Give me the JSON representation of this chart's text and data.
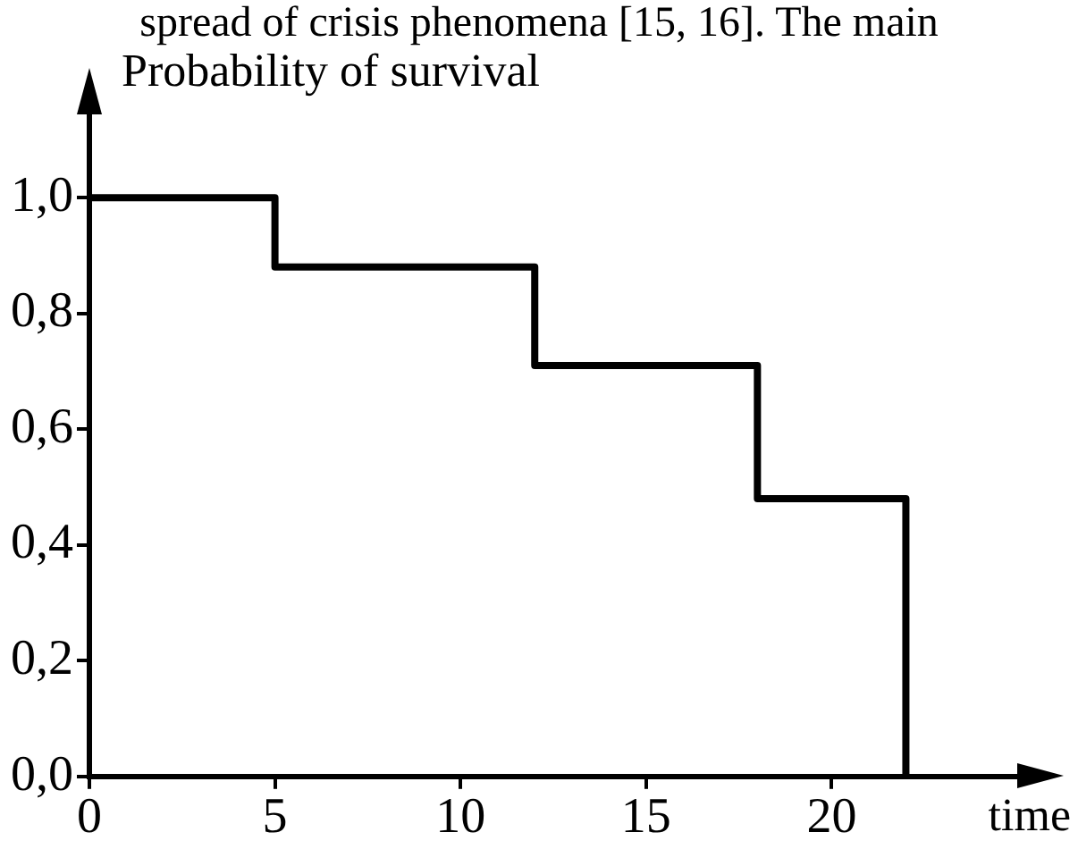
{
  "chart_data": {
    "type": "step",
    "xlabel": "time",
    "ylabel": "Probability of survival",
    "annotations": [
      "spread of crisis phenomena [15, 16]. The main"
    ],
    "x": [
      0,
      5,
      12,
      18,
      22
    ],
    "series": [
      {
        "color": "#000000",
        "values": [
          1.0,
          0.88,
          0.71,
          0.48,
          0
        ]
      }
    ],
    "xlim": [
      0,
      25
    ],
    "xticks": [
      0,
      5,
      10,
      15,
      20
    ],
    "ylim": [
      0,
      1.15
    ],
    "yticks": [
      {
        "value": 0,
        "label": "0,0"
      },
      {
        "value": 0.2,
        "label": "0,2"
      },
      {
        "value": 0.4,
        "label": "0,4"
      },
      {
        "value": 0.6,
        "label": "0,6"
      },
      {
        "value": 0.8,
        "label": "0,8"
      },
      {
        "value": 1,
        "label": "1,0"
      }
    ],
    "grid": false,
    "legend": false,
    "marker": "none",
    "line_style": "solid"
  }
}
